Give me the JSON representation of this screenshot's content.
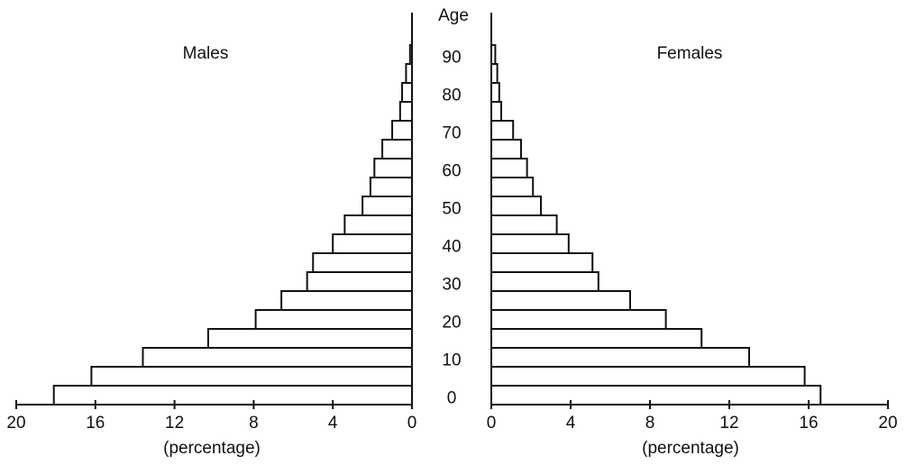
{
  "chart_data": {
    "type": "pyramid",
    "age_label": "Age",
    "x_label": "(percentage)",
    "categories": [
      "0",
      null,
      "10",
      null,
      "20",
      null,
      "30",
      null,
      "40",
      null,
      "50",
      null,
      "60",
      null,
      "70",
      null,
      "80",
      null,
      "90"
    ],
    "series": [
      {
        "name": "Males",
        "color": "#ffffff",
        "values": [
          18.1,
          16.2,
          13.6,
          10.3,
          7.9,
          6.6,
          5.3,
          5.0,
          4.0,
          3.4,
          2.5,
          2.1,
          1.9,
          1.5,
          1.0,
          0.6,
          0.5,
          0.3,
          0.1
        ]
      },
      {
        "name": "Females",
        "color": "#ffffff",
        "values": [
          16.6,
          15.8,
          13.0,
          10.6,
          8.8,
          7.0,
          5.4,
          5.1,
          3.9,
          3.3,
          2.5,
          2.1,
          1.8,
          1.5,
          1.1,
          0.5,
          0.4,
          0.3,
          0.2
        ]
      }
    ],
    "xlim": [
      0,
      20
    ],
    "xticks": [
      0,
      4,
      8,
      12,
      16,
      20
    ]
  }
}
